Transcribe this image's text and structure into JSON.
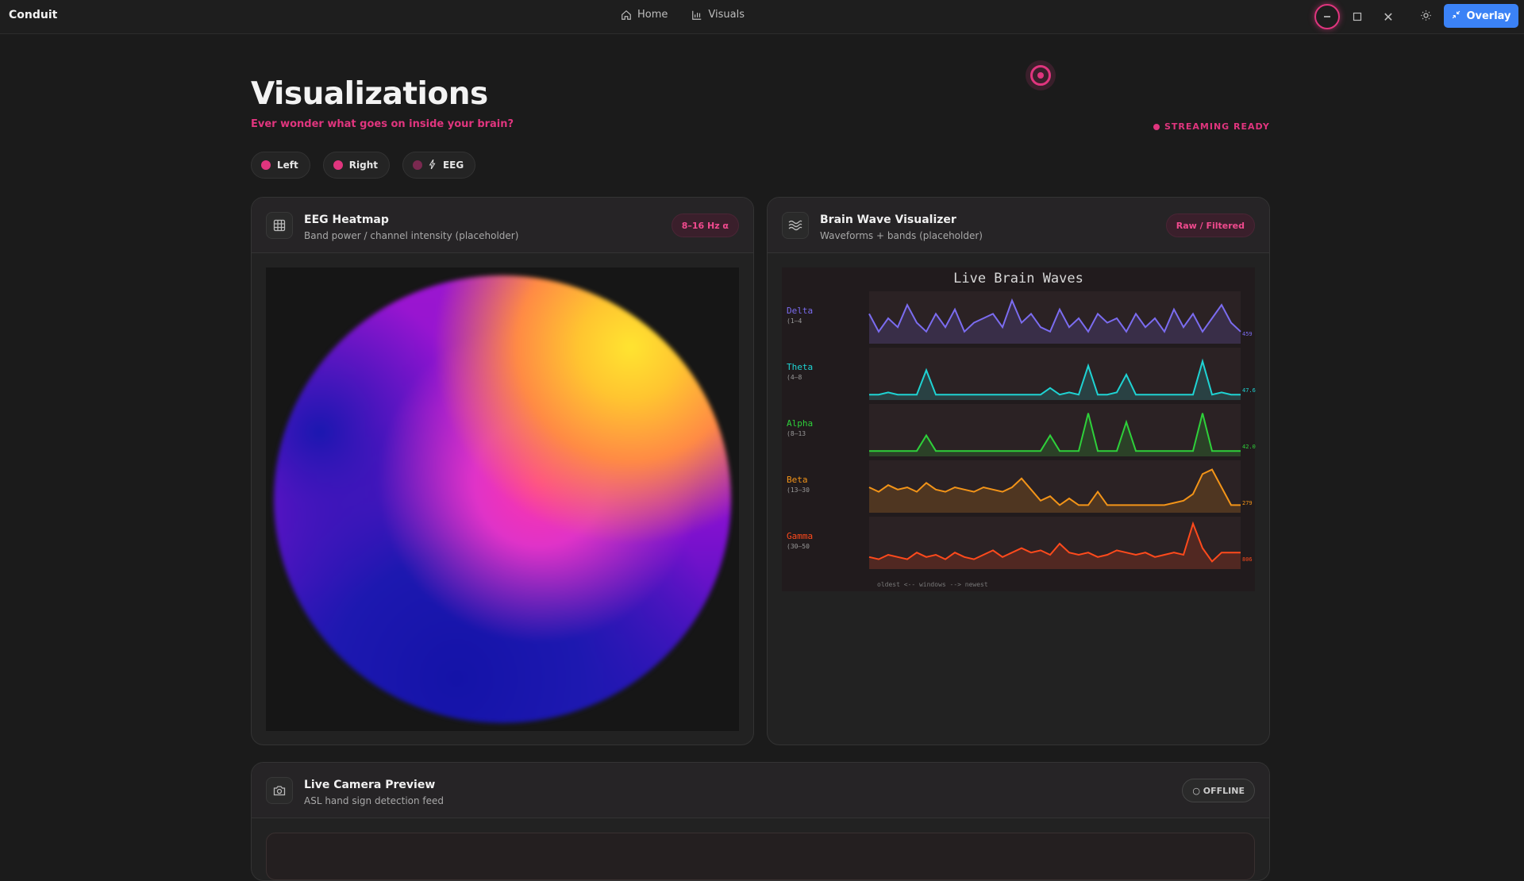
{
  "app": {
    "title": "Conduit"
  },
  "nav": {
    "home": "Home",
    "visuals": "Visuals"
  },
  "window": {
    "close_symbol": "✕",
    "overlay_label": "Overlay"
  },
  "header": {
    "title": "Visualizations",
    "subtitle": "Ever wonder what goes on inside your brain?",
    "status": "STREAMING READY"
  },
  "chips": [
    {
      "label": "Left"
    },
    {
      "label": "Right"
    },
    {
      "label": "EEG"
    }
  ],
  "heatmap": {
    "title": "EEG Heatmap",
    "subtitle": "Band power / channel intensity (placeholder)",
    "badge": "8–16 Hz α"
  },
  "brainwave": {
    "title": "Brain Wave Visualizer",
    "subtitle": "Waveforms + bands (placeholder)",
    "badge": "Raw / Filtered",
    "plot_title": "Live Brain Waves",
    "axis_note": "oldest <-- windows --> newest",
    "bands": [
      {
        "name": "Delta",
        "range": "(1–4",
        "value": "459",
        "color": "#7b6cf0"
      },
      {
        "name": "Theta",
        "range": "(4–8",
        "value": "47.6",
        "color": "#1fd3d3"
      },
      {
        "name": "Alpha",
        "range": "(8–13",
        "value": "42.0",
        "color": "#2ed03a"
      },
      {
        "name": "Beta",
        "range": "(13–30",
        "value": "279",
        "color": "#f39418"
      },
      {
        "name": "Gamma",
        "range": "(30–50",
        "value": "806",
        "color": "#ff4a1c"
      }
    ]
  },
  "camera": {
    "title": "Live Camera Preview",
    "subtitle": "ASL hand sign detection feed",
    "badge": "○ OFFLINE"
  },
  "colors": {
    "accent": "#e0357e",
    "primary_button": "#3b82f6",
    "background": "#1b1b1b"
  },
  "icons": [
    "home-icon",
    "bar-chart-icon",
    "minimize-icon",
    "maximize-icon",
    "close-icon",
    "sun-icon",
    "shrink-icon",
    "grid-icon",
    "waves-icon",
    "camera-icon",
    "bolt-icon",
    "record-icon"
  ]
}
